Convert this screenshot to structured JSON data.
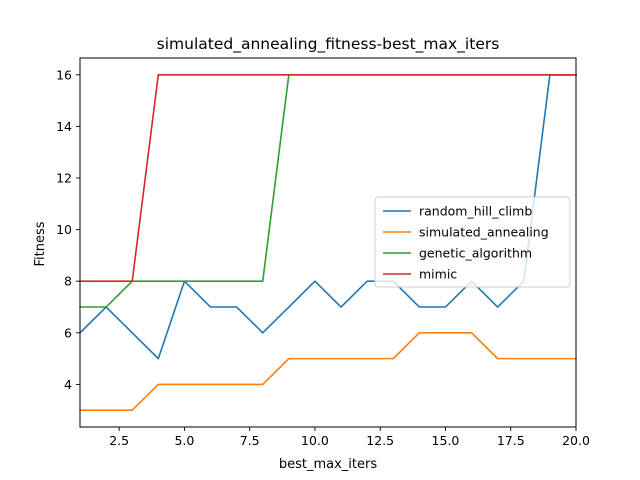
{
  "chart_data": {
    "type": "line",
    "title": "simulated_annealing_fitness-best_max_iters",
    "xlabel": "best_max_iters",
    "ylabel": "Fitness",
    "xlim": [
      1,
      20
    ],
    "ylim": [
      2.35,
      16.65
    ],
    "xticks": [
      2.5,
      5.0,
      7.5,
      10.0,
      12.5,
      15.0,
      17.5,
      20.0
    ],
    "xtick_labels": [
      "2.5",
      "5.0",
      "7.5",
      "10.0",
      "12.5",
      "15.0",
      "17.5",
      "20.0"
    ],
    "yticks": [
      4,
      6,
      8,
      10,
      12,
      14,
      16
    ],
    "ytick_labels": [
      "4",
      "6",
      "8",
      "10",
      "12",
      "14",
      "16"
    ],
    "grid": false,
    "legend_position": "center-right",
    "x": [
      1,
      2,
      3,
      4,
      5,
      6,
      7,
      8,
      9,
      10,
      11,
      12,
      13,
      14,
      15,
      16,
      17,
      18,
      19,
      20
    ],
    "series": [
      {
        "name": "random_hill_climb",
        "color": "#1f77b4",
        "values": [
          6,
          7,
          6,
          5,
          8,
          7,
          7,
          6,
          7,
          8,
          7,
          8,
          8,
          7,
          7,
          8,
          7,
          8,
          16,
          16
        ]
      },
      {
        "name": "simulated_annealing",
        "color": "#ff7f0e",
        "values": [
          3,
          3,
          3,
          4,
          4,
          4,
          4,
          4,
          5,
          5,
          5,
          5,
          5,
          6,
          6,
          6,
          5,
          5,
          5,
          5
        ]
      },
      {
        "name": "genetic_algorithm",
        "color": "#2ca02c",
        "values": [
          7,
          7,
          8,
          8,
          8,
          8,
          8,
          8,
          16,
          16,
          16,
          16,
          16,
          16,
          16,
          16,
          16,
          16,
          16,
          16
        ]
      },
      {
        "name": "mimic",
        "color": "#d62728",
        "values": [
          8,
          8,
          8,
          16,
          16,
          16,
          16,
          16,
          16,
          16,
          16,
          16,
          16,
          16,
          16,
          16,
          16,
          16,
          16,
          16
        ]
      }
    ]
  }
}
